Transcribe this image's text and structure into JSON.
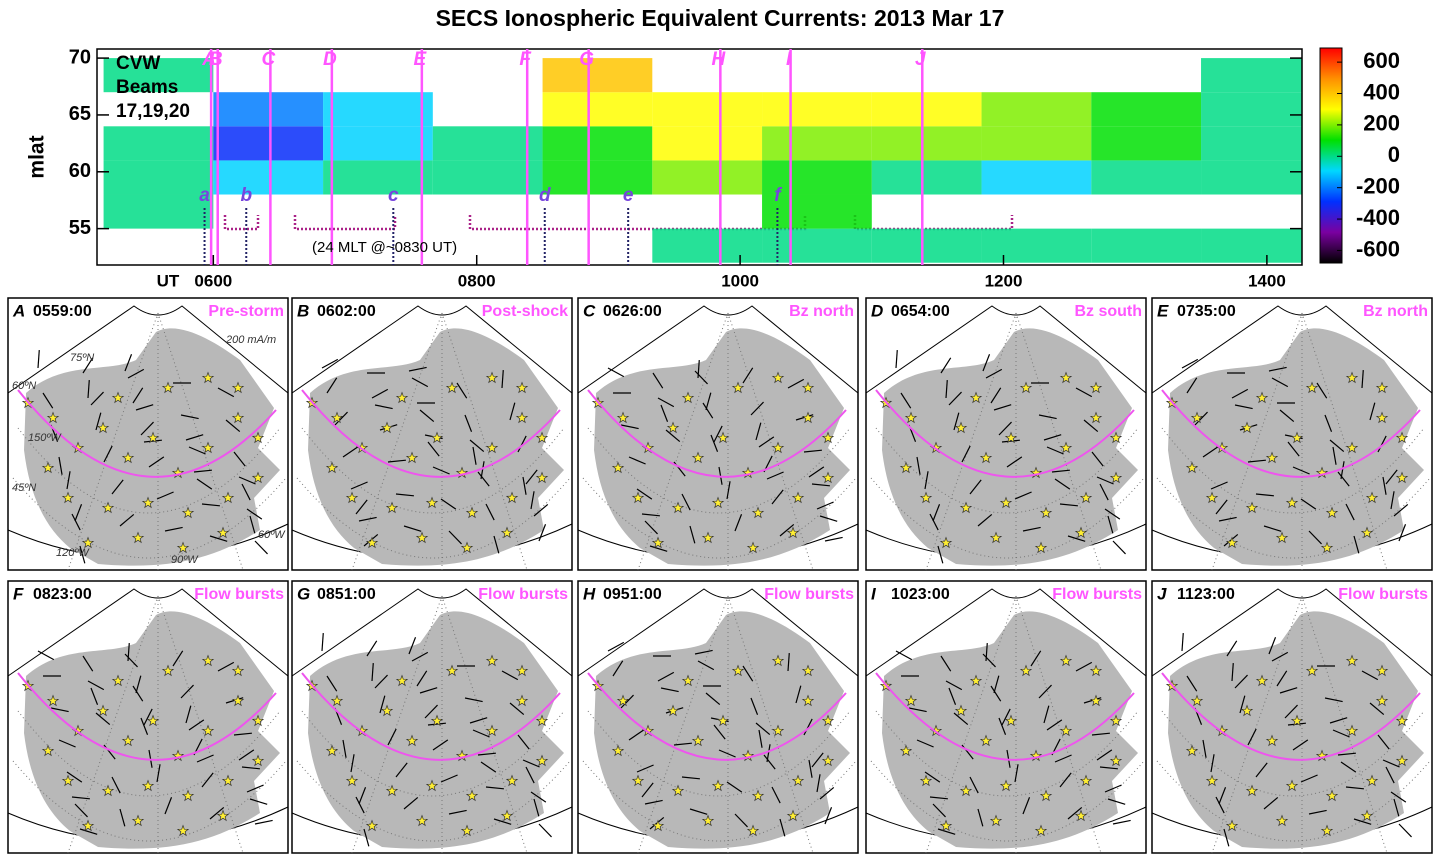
{
  "title": "SECS Ionospheric Equivalent Currents: 2013 Mar 17",
  "chart_data": {
    "type": "heatmap",
    "x_label": "UT",
    "y_label": "mlat",
    "station_label": [
      "CVW",
      "Beams",
      "17,19,20"
    ],
    "xlim": [
      307,
      856
    ],
    "xticks": [
      {
        "value": 360,
        "label": "0600"
      },
      {
        "value": 480,
        "label": "0800"
      },
      {
        "value": 600,
        "label": "1000"
      },
      {
        "value": 720,
        "label": "1200"
      },
      {
        "value": 840,
        "label": "1400"
      }
    ],
    "ylim": [
      51.8,
      70.8
    ],
    "yticks": [
      55,
      60,
      65,
      70
    ],
    "x_bins": [
      310,
      360,
      410,
      460,
      510,
      560,
      610,
      660,
      710,
      760,
      810,
      860
    ],
    "y_bins": [
      52,
      55,
      58,
      61,
      64,
      67,
      70
    ],
    "values": [
      [
        null,
        null,
        null,
        null,
        null,
        0,
        0,
        0,
        0,
        0,
        0
      ],
      [
        0,
        null,
        null,
        null,
        null,
        null,
        100,
        null,
        null,
        null,
        null
      ],
      [
        0,
        -100,
        0,
        0,
        100,
        200,
        100,
        0,
        -100,
        0,
        0
      ],
      [
        0,
        -300,
        -100,
        0,
        100,
        300,
        200,
        200,
        200,
        100,
        0
      ],
      [
        null,
        -200,
        -100,
        null,
        300,
        300,
        300,
        300,
        200,
        100,
        0
      ],
      [
        0,
        null,
        null,
        null,
        400,
        null,
        null,
        null,
        null,
        null,
        0
      ]
    ],
    "zlim": [
      -680,
      690
    ],
    "zticks": [
      600,
      400,
      200,
      0,
      -200,
      -400,
      -600
    ],
    "colorscale": [
      "#000000",
      "#7a00a0",
      "#0030ff",
      "#00d8ff",
      "#00e000",
      "#ffff00",
      "#ff9000",
      "#ff0000"
    ],
    "event_lines": {
      "labels": [
        "A",
        "B",
        "C",
        "D",
        "E",
        "F",
        "G",
        "H",
        "I",
        "J"
      ],
      "x": [
        359,
        362,
        386,
        414,
        455,
        503,
        531,
        591,
        623,
        683
      ],
      "color": "#ff55ff"
    },
    "onset_markers": {
      "labels": [
        "a",
        "b",
        "c",
        "d",
        "e",
        "f"
      ],
      "x": [
        356,
        375,
        442,
        511,
        549,
        617
      ],
      "color": "#7744dd"
    },
    "bracket_note": "(24 MLT @~0830 UT)"
  },
  "panels": [
    {
      "letter": "A",
      "time": "0559:00",
      "note": "Pre-storm"
    },
    {
      "letter": "B",
      "time": "0602:00",
      "note": "Post-shock"
    },
    {
      "letter": "C",
      "time": "0626:00",
      "note": "Bz north"
    },
    {
      "letter": "D",
      "time": "0654:00",
      "note": "Bz south"
    },
    {
      "letter": "E",
      "time": "0735:00",
      "note": "Bz north"
    },
    {
      "letter": "F",
      "time": "0823:00",
      "note": "Flow bursts"
    },
    {
      "letter": "G",
      "time": "0851:00",
      "note": "Flow bursts"
    },
    {
      "letter": "H",
      "time": "0951:00",
      "note": "Flow bursts"
    },
    {
      "letter": "I",
      "time": "1023:00",
      "note": "Flow bursts"
    },
    {
      "letter": "J",
      "time": "1123:00",
      "note": "Flow bursts"
    }
  ],
  "map_labels": {
    "scale": "200 mA/m",
    "lat75": "75ºN",
    "lat60": "60ºN",
    "lon150": "150ºW",
    "lat45": "45ºN",
    "lon120": "120ºW",
    "lon90": "90ºW",
    "lon60": "60ºW"
  }
}
